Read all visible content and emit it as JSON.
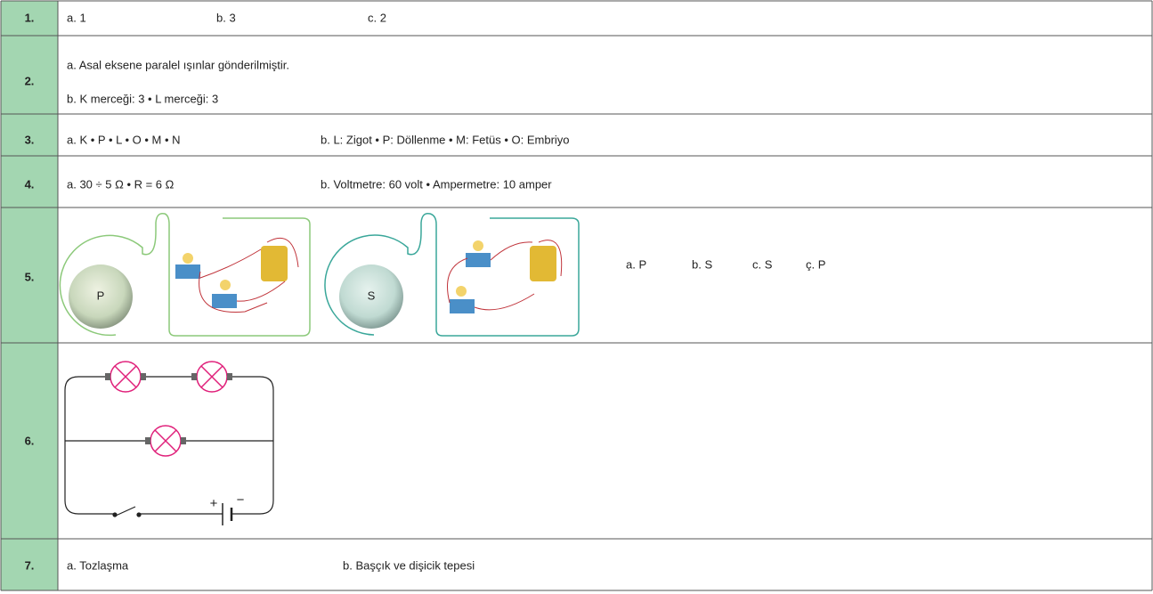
{
  "rows": [
    {
      "number": "1.",
      "items": [
        "a. 1",
        "b. 3",
        "c. 2"
      ]
    },
    {
      "number": "2.",
      "items": [
        "a. Asal eksene paralel ışınlar gönderilmiştir.",
        "b. K merceği: 3 • L merceği: 3"
      ]
    },
    {
      "number": "3.",
      "items": [
        "a. K • P • L • O • M • N",
        "b. L: Zigot • P: Döllenme • M: Fetüs • O: Embriyo"
      ]
    },
    {
      "number": "4.",
      "items": [
        "a. 30 ÷ 5 Ω • R = 6 Ω",
        "b. Voltmetre: 60 volt • Ampermetre: 10 amper"
      ]
    },
    {
      "number": "5.",
      "figure_labels": [
        "P",
        "S"
      ],
      "items": [
        "a. P",
        "b. S",
        "c. S",
        "ç. P"
      ]
    },
    {
      "number": "6.",
      "figure_labels": [
        "+",
        "−"
      ]
    },
    {
      "number": "7.",
      "items": [
        "a. Tozlaşma",
        "b. Başçık ve dişicik tepesi"
      ]
    }
  ]
}
